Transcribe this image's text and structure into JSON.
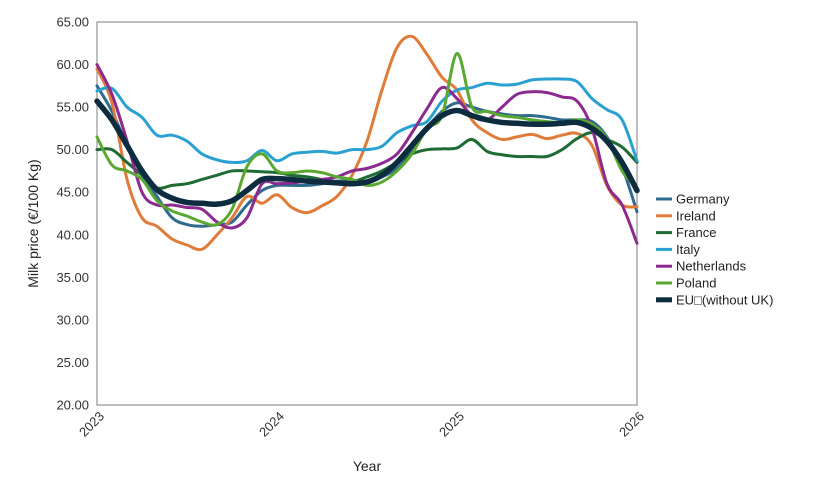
{
  "chart_data": {
    "type": "line",
    "xlabel": "Year",
    "ylabel": "Milk price (€/100 Kg)",
    "ylim": [
      20,
      65
    ],
    "xlim": [
      2023,
      2026
    ],
    "y_ticks": [
      "20.00",
      "25.00",
      "30.00",
      "35.00",
      "40.00",
      "45.00",
      "50.00",
      "55.00",
      "60.00",
      "65.00"
    ],
    "x_ticks": [
      "2023",
      "2024",
      "2025",
      "2026"
    ],
    "grid": false,
    "legend_position": "right",
    "x": [
      2023.0,
      2023.083,
      2023.167,
      2023.25,
      2023.333,
      2023.417,
      2023.5,
      2023.583,
      2023.667,
      2023.75,
      2023.833,
      2023.917,
      2024.0,
      2024.083,
      2024.167,
      2024.25,
      2024.333,
      2024.417,
      2024.5,
      2024.583,
      2024.667,
      2024.75,
      2024.833,
      2024.917,
      2025.0,
      2025.083,
      2025.167,
      2025.25,
      2025.333,
      2025.417,
      2025.5,
      2025.583,
      2025.667,
      2025.75,
      2025.833,
      2025.917,
      2026.0
    ],
    "series": [
      {
        "name": "Germany",
        "color": "#2f6a8f",
        "width": 3,
        "values": [
          57.5,
          54.5,
          50.5,
          47.0,
          44.5,
          42.0,
          41.2,
          41.0,
          41.2,
          41.5,
          43.5,
          45.2,
          45.8,
          45.8,
          45.8,
          46.0,
          46.3,
          46.3,
          46.3,
          46.8,
          47.8,
          49.8,
          52.5,
          54.5,
          55.5,
          55.0,
          54.5,
          54.2,
          54.0,
          54.0,
          53.8,
          53.5,
          53.5,
          53.3,
          51.5,
          48.0,
          42.7
        ]
      },
      {
        "name": "Ireland",
        "color": "#e07b39",
        "width": 3,
        "values": [
          59.5,
          55.5,
          46.5,
          42.0,
          41.0,
          39.5,
          38.8,
          38.3,
          40.0,
          42.0,
          44.5,
          43.7,
          44.7,
          43.2,
          42.6,
          43.4,
          44.5,
          47.0,
          51.0,
          57.0,
          62.0,
          63.3,
          61.2,
          58.5,
          57.0,
          53.5,
          52.0,
          51.2,
          51.5,
          51.8,
          51.3,
          51.7,
          51.9,
          50.5,
          45.8,
          43.5,
          43.3
        ]
      },
      {
        "name": "France",
        "color": "#1e6b34",
        "width": 3,
        "values": [
          50.0,
          50.0,
          48.5,
          47.0,
          45.5,
          45.8,
          46.0,
          46.5,
          47.0,
          47.5,
          47.5,
          47.4,
          47.3,
          47.0,
          46.8,
          46.5,
          46.2,
          46.2,
          46.8,
          47.5,
          48.5,
          49.5,
          50.0,
          50.1,
          50.2,
          51.2,
          49.8,
          49.4,
          49.2,
          49.2,
          49.2,
          50.0,
          51.3,
          52.0,
          51.2,
          50.3,
          48.5
        ]
      },
      {
        "name": "Italy",
        "color": "#2aa1d0",
        "width": 3,
        "values": [
          56.9,
          57.2,
          55.0,
          53.8,
          51.7,
          51.7,
          51.0,
          49.5,
          48.8,
          48.5,
          48.7,
          49.9,
          48.7,
          49.5,
          49.7,
          49.8,
          49.6,
          50.0,
          50.0,
          50.4,
          52.0,
          52.8,
          53.3,
          55.7,
          57.0,
          57.3,
          57.8,
          57.6,
          57.7,
          58.2,
          58.3,
          58.3,
          58.0,
          56.0,
          54.7,
          53.5,
          48.7
        ]
      },
      {
        "name": "Netherlands",
        "color": "#8b2a8f",
        "width": 3,
        "values": [
          60.0,
          56.5,
          51.0,
          45.0,
          43.5,
          43.5,
          43.2,
          43.0,
          41.5,
          40.8,
          42.0,
          46.0,
          46.0,
          46.1,
          46.3,
          46.5,
          46.8,
          47.5,
          47.8,
          48.4,
          49.5,
          52.0,
          54.8,
          57.3,
          56.0,
          54.0,
          53.5,
          55.0,
          56.5,
          56.8,
          56.7,
          56.2,
          55.7,
          52.5,
          46.0,
          43.5,
          39.0
        ]
      },
      {
        "name": "Poland",
        "color": "#5aa832",
        "width": 3,
        "values": [
          51.5,
          48.2,
          47.5,
          46.5,
          44.0,
          42.8,
          42.2,
          41.5,
          41.2,
          43.0,
          48.0,
          49.5,
          47.5,
          47.3,
          47.5,
          47.3,
          46.8,
          46.5,
          45.8,
          46.2,
          47.5,
          49.5,
          52.5,
          54.0,
          61.3,
          55.0,
          54.5,
          54.0,
          53.8,
          53.5,
          53.3,
          53.2,
          53.5,
          53.0,
          51.3,
          47.5,
          45.5
        ]
      },
      {
        "name": "EU□(without UK)",
        "color": "#0d2c3f",
        "width": 5.5,
        "values": [
          55.7,
          53.5,
          50.5,
          47.5,
          45.3,
          44.3,
          43.8,
          43.7,
          43.6,
          44.0,
          45.2,
          46.5,
          46.6,
          46.5,
          46.3,
          46.2,
          46.1,
          46.0,
          46.2,
          47.0,
          48.5,
          50.5,
          52.5,
          54.0,
          54.6,
          54.0,
          53.5,
          53.2,
          53.1,
          53.0,
          53.0,
          53.1,
          53.2,
          52.5,
          51.0,
          48.5,
          45.2
        ]
      }
    ]
  }
}
